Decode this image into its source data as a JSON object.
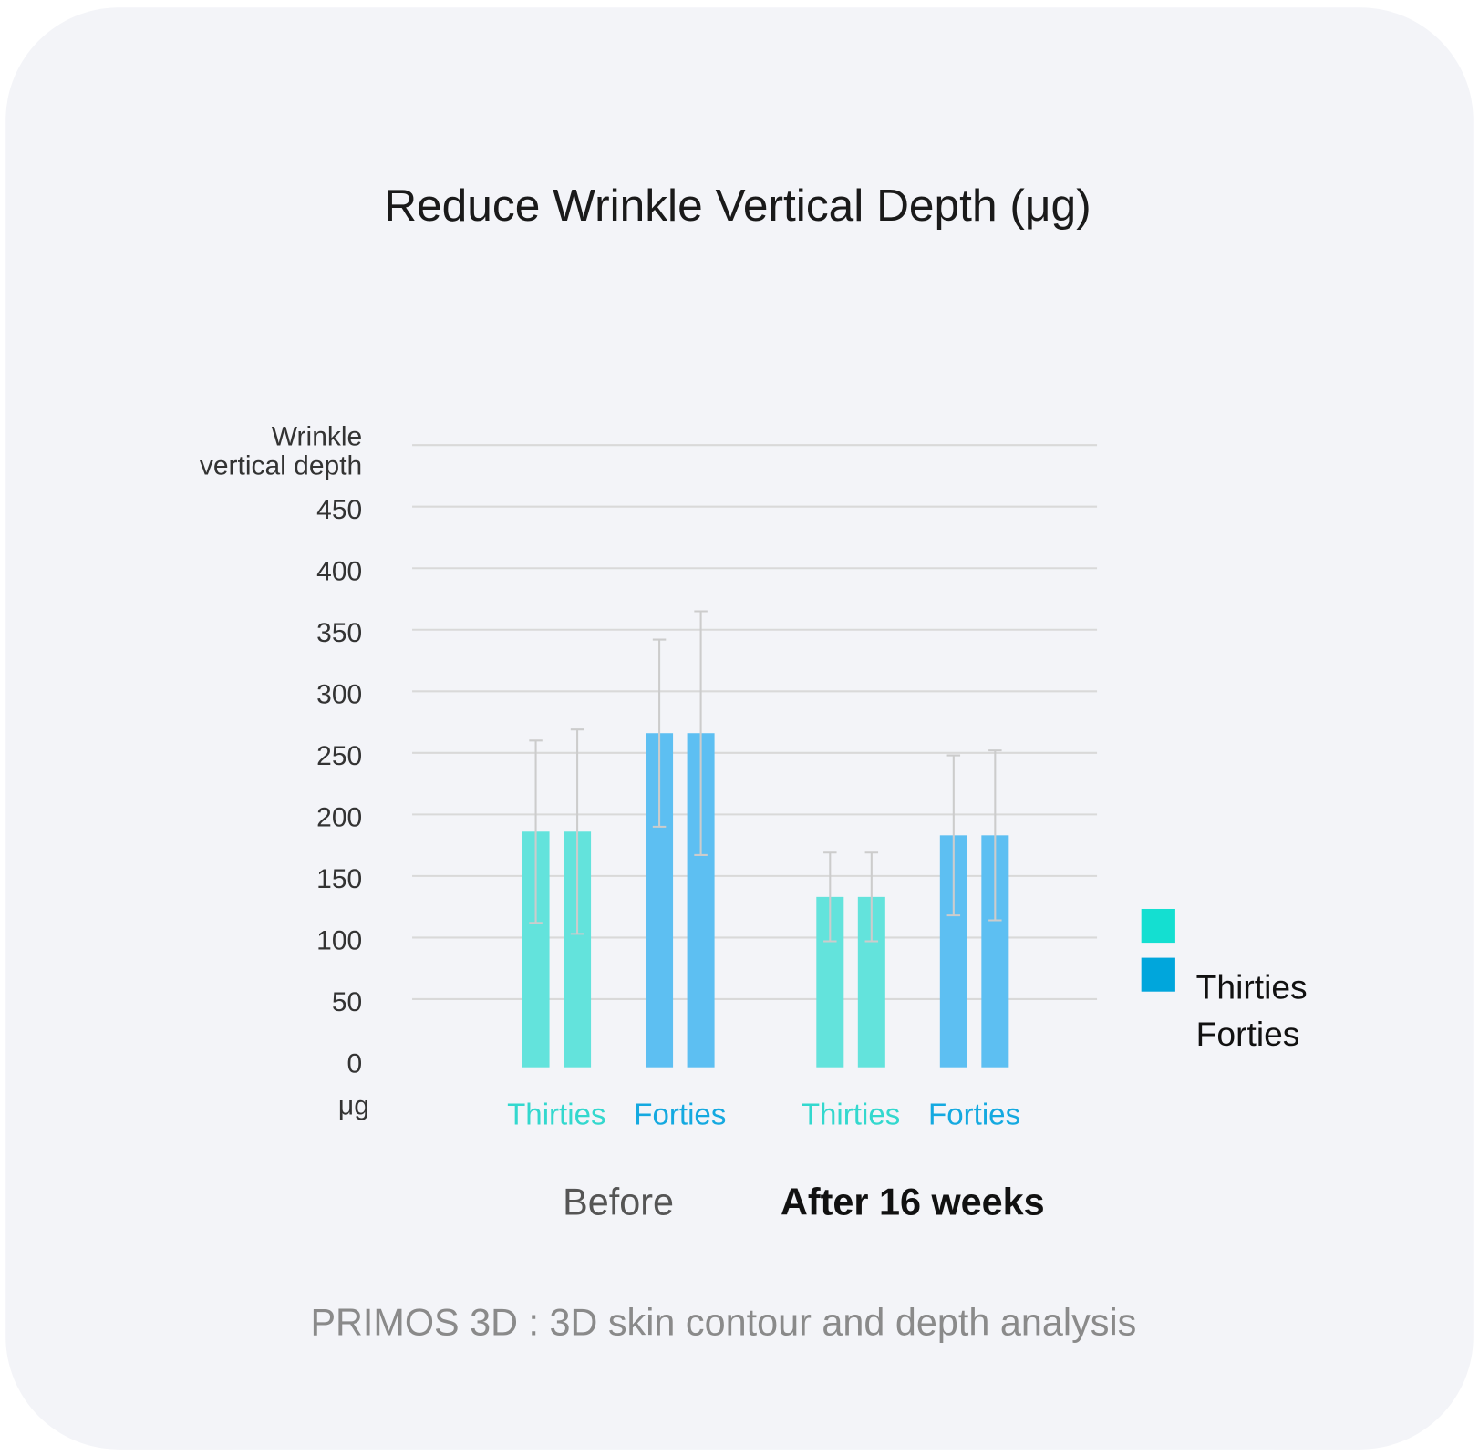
{
  "chart_data": {
    "type": "bar",
    "title": "Reduce Wrinkle Vertical Depth (μg)",
    "y_label": [
      "Wrinkle",
      "vertical depth"
    ],
    "y_unit": "μg",
    "categories": [
      "Before",
      "After 16 weeks"
    ],
    "highlight_index": 1,
    "series": [
      {
        "name": "Thirties",
        "color": "#63e3dc",
        "label_color": "#33d8ce",
        "legend_color": "#14dfd1",
        "values": [
          [
            186,
            186
          ],
          [
            133,
            133
          ]
        ],
        "errors": [
          [
            74,
            83
          ],
          [
            36,
            36
          ]
        ]
      },
      {
        "name": "Forties",
        "color": "#5dbff2",
        "label_color": "#14a9e0",
        "legend_color": "#00a6dc",
        "values": [
          [
            266,
            266
          ],
          [
            183,
            183
          ]
        ],
        "errors": [
          [
            76,
            99
          ],
          [
            65,
            69
          ]
        ]
      }
    ],
    "ylim": [
      0,
      500
    ],
    "yticks": [
      0,
      50,
      100,
      150,
      200,
      250,
      300,
      350,
      400,
      450
    ],
    "grid": true,
    "footnote": "PRIMOS 3D : 3D skin contour and depth analysis"
  }
}
